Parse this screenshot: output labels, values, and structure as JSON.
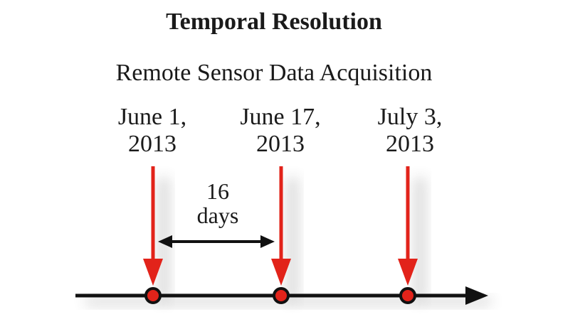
{
  "title": "Temporal Resolution",
  "subtitle": "Remote Sensor Data Acquisition",
  "acquisitions": [
    {
      "line1": "June 1,",
      "line2": "2013"
    },
    {
      "line1": "June 17,",
      "line2": "2013"
    },
    {
      "line1": "July 3,",
      "line2": "2013"
    }
  ],
  "interval": {
    "value": "16",
    "unit": "days"
  },
  "colors": {
    "arrow": "#e2231a",
    "axis": "#111111",
    "marker_fill": "#e2231a",
    "marker_stroke": "#111111"
  }
}
